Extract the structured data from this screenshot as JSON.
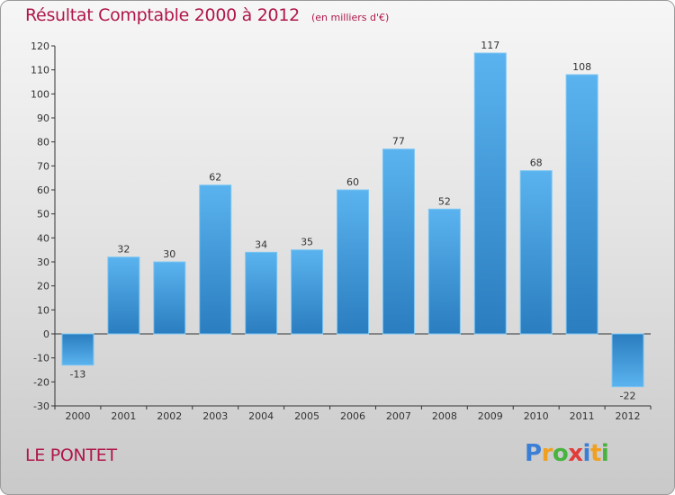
{
  "header": {
    "title": "Résultat Comptable 2000 à 2012",
    "unit": "(en milliers d'€)"
  },
  "footer": {
    "city": "LE PONTET"
  },
  "logo": {
    "letters": [
      "P",
      "r",
      "o",
      "x",
      "i",
      "t",
      "i"
    ],
    "colors": [
      "#3a7fd5",
      "#f0a020",
      "#49b33f",
      "#e13b3b",
      "#3a7fd5",
      "#f0a020",
      "#49b33f"
    ]
  },
  "colors": {
    "title": "#b0174a",
    "bar_top": "#5ab3ee",
    "bar_bottom": "#2a7dbf",
    "axis": "#333333"
  },
  "chart_data": {
    "type": "bar",
    "title": "Résultat Comptable 2000 à 2012",
    "xlabel": "",
    "ylabel": "",
    "categories": [
      "2000",
      "2001",
      "2002",
      "2003",
      "2004",
      "2005",
      "2006",
      "2007",
      "2008",
      "2009",
      "2010",
      "2011",
      "2012"
    ],
    "values": [
      -13,
      32,
      30,
      62,
      34,
      35,
      60,
      77,
      52,
      117,
      68,
      108,
      -22
    ],
    "ylim": [
      -30,
      120
    ],
    "yticks": [
      -30,
      -20,
      -10,
      0,
      10,
      20,
      30,
      40,
      50,
      60,
      70,
      80,
      90,
      100,
      110,
      120
    ],
    "grid": false,
    "legend": "none"
  }
}
